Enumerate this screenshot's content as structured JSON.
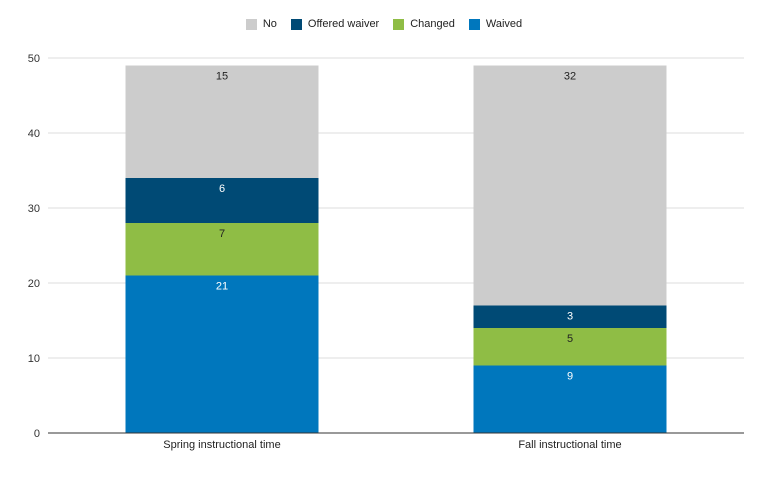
{
  "chart_data": {
    "type": "bar",
    "stacked": true,
    "title": "",
    "xlabel": "",
    "ylabel": "",
    "categories": [
      "Spring instructional time",
      "Fall instructional time"
    ],
    "ylim": [
      0,
      50
    ],
    "yticks": [
      0,
      10,
      20,
      30,
      40,
      50
    ],
    "grid": true,
    "legend_position": "top-center",
    "series": [
      {
        "name": "Waived",
        "color": "#0077bd",
        "label_color": "#ffffff",
        "values": [
          21,
          9
        ]
      },
      {
        "name": "Changed",
        "color": "#8fbd45",
        "label_color": "#222222",
        "values": [
          7,
          5
        ]
      },
      {
        "name": "Offered waiver",
        "color": "#004a75",
        "label_color": "#ffffff",
        "values": [
          6,
          3
        ]
      },
      {
        "name": "No",
        "color": "#cccccc",
        "label_color": "#222222",
        "values": [
          15,
          32
        ]
      }
    ],
    "legend_order": [
      "No",
      "Offered waiver",
      "Changed",
      "Waived"
    ]
  }
}
